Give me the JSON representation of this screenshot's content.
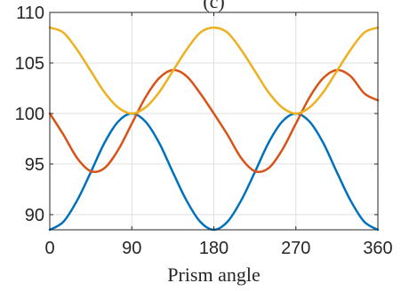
{
  "chart_data": {
    "type": "line",
    "title": "(c)",
    "xlabel": "Prism angle",
    "ylabel": "",
    "xlim": [
      0,
      360
    ],
    "ylim": [
      88.5,
      110
    ],
    "grid": true,
    "x_ticks": [
      0,
      90,
      180,
      270,
      360
    ],
    "x_tick_labels": [
      "0",
      "90",
      "180",
      "270",
      "360"
    ],
    "y_ticks": [
      90,
      95,
      100,
      105,
      110
    ],
    "y_tick_labels": [
      "90",
      "95",
      "100",
      "105",
      "110"
    ],
    "series": [
      {
        "color": "#0072BD",
        "x": [
          0,
          15,
          30,
          45,
          60,
          75,
          90,
          105,
          120,
          135,
          150,
          165,
          180,
          195,
          210,
          225,
          240,
          255,
          270,
          285,
          300,
          315,
          330,
          345,
          360
        ],
        "y": [
          88.5,
          89.3,
          91.4,
          94.2,
          97.1,
          99.2,
          100.0,
          99.2,
          97.1,
          94.2,
          91.4,
          89.3,
          88.5,
          89.3,
          91.4,
          94.2,
          97.1,
          99.2,
          100.0,
          99.2,
          97.1,
          94.2,
          91.4,
          89.3,
          88.5
        ]
      },
      {
        "color": "#D95319",
        "x": [
          0,
          15,
          30,
          45,
          60,
          75,
          90,
          105,
          120,
          135,
          150,
          165,
          180,
          195,
          210,
          225,
          240,
          255,
          270,
          285,
          300,
          315,
          330,
          345,
          360
        ],
        "y": [
          100.0,
          97.9,
          95.6,
          94.3,
          94.6,
          96.4,
          99.0,
          101.6,
          103.5,
          104.3,
          103.7,
          102.0,
          100.0,
          97.9,
          95.6,
          94.3,
          94.6,
          96.4,
          99.0,
          101.6,
          103.5,
          104.3,
          103.7,
          102.0,
          101.3
        ]
      },
      {
        "color": "#EDB120",
        "x": [
          0,
          15,
          30,
          45,
          60,
          75,
          90,
          105,
          120,
          135,
          150,
          165,
          180,
          195,
          210,
          225,
          240,
          255,
          270,
          285,
          300,
          315,
          330,
          345,
          360
        ],
        "y": [
          108.5,
          108.0,
          106.3,
          104.2,
          102.1,
          100.6,
          100.0,
          100.6,
          102.1,
          104.2,
          106.3,
          108.0,
          108.5,
          108.0,
          106.3,
          104.2,
          102.1,
          100.6,
          100.0,
          100.6,
          102.1,
          104.2,
          106.3,
          108.0,
          108.5
        ]
      }
    ]
  }
}
